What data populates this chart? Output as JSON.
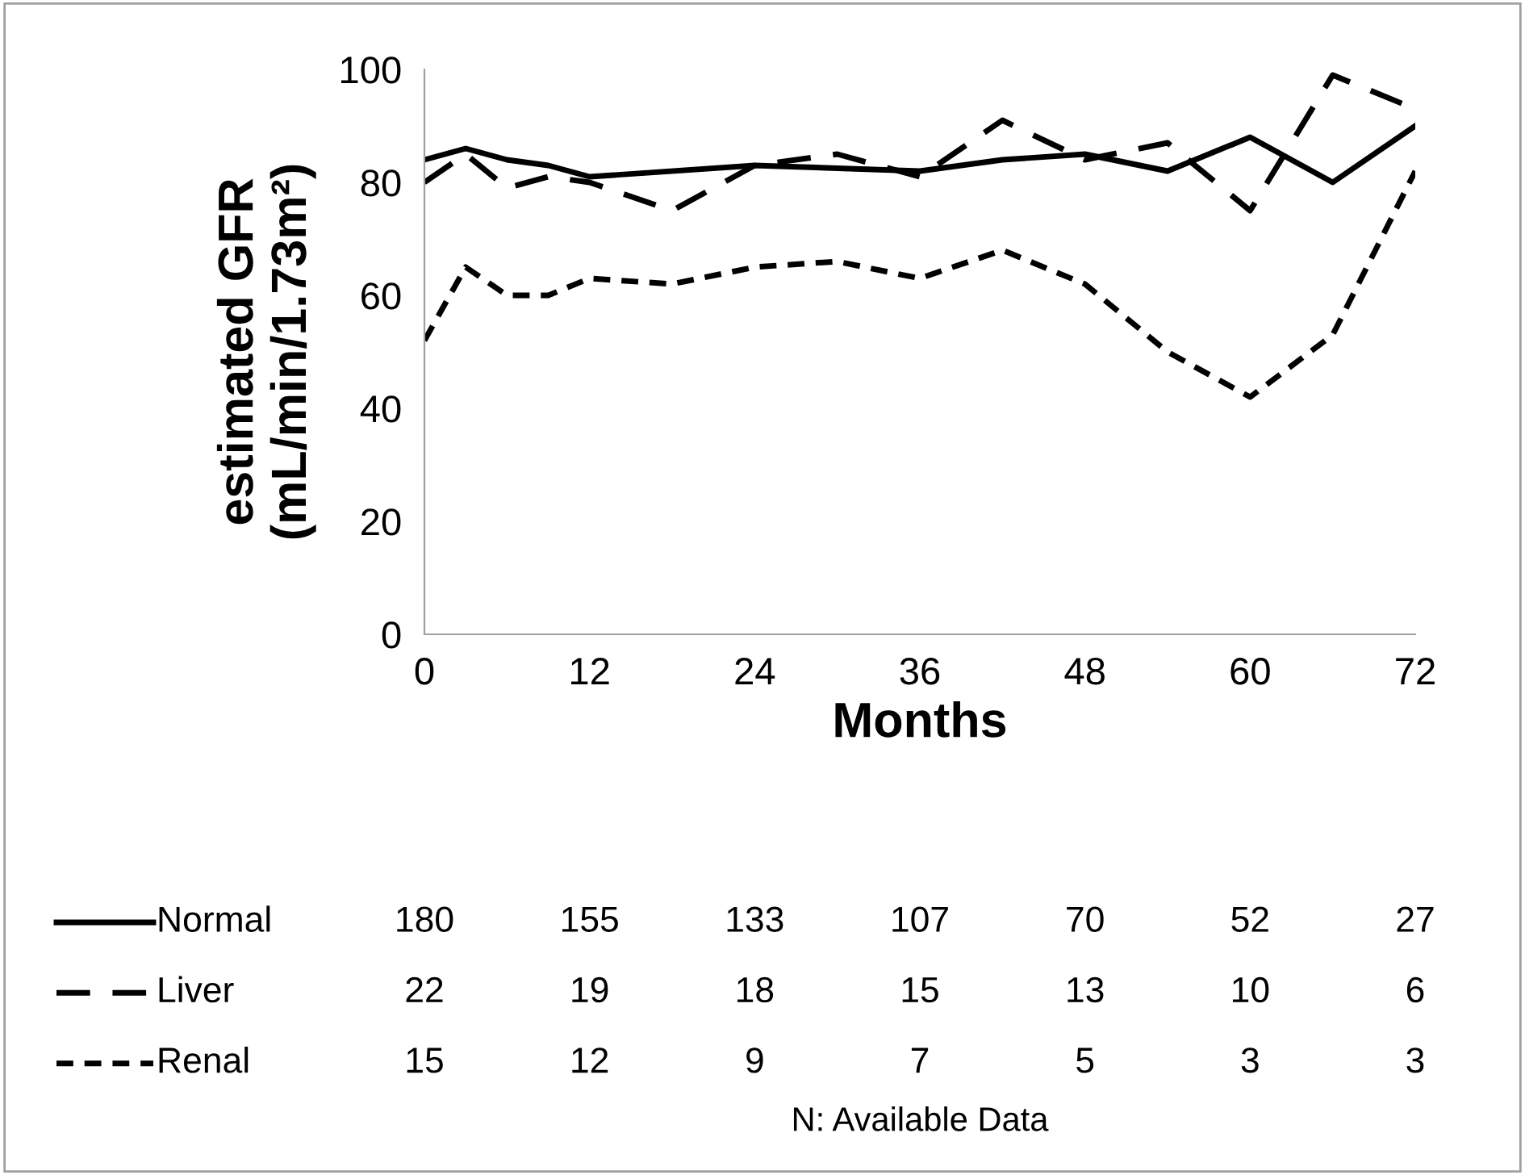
{
  "chart_data": {
    "type": "line",
    "xlabel": "Months",
    "ylabel": "estimated GFR\n(mL/min/1.73m²)",
    "xlim": [
      0,
      72
    ],
    "ylim": [
      0,
      100
    ],
    "xticks": [
      0,
      12,
      24,
      36,
      48,
      60,
      72
    ],
    "yticks": [
      0,
      20,
      40,
      60,
      80,
      100
    ],
    "grid": false,
    "legend": "bottom",
    "marker": "none",
    "series": [
      {
        "name": "Normal",
        "color": "#000000",
        "line_style": "solid",
        "x": [
          0,
          3,
          6,
          9,
          12,
          24,
          36,
          42,
          48,
          54,
          60,
          66,
          72
        ],
        "values": [
          84,
          86,
          84,
          83,
          81,
          83,
          82,
          84,
          85,
          82,
          88,
          80,
          90
        ]
      },
      {
        "name": "Liver",
        "color": "#000000",
        "line_style": "dashed",
        "x": [
          0,
          3,
          6,
          9,
          12,
          18,
          24,
          30,
          36,
          42,
          48,
          54,
          60,
          66,
          72
        ],
        "values": [
          80,
          85,
          79,
          81,
          80,
          75,
          83,
          85,
          81,
          91,
          84,
          87,
          75,
          99,
          93
        ]
      },
      {
        "name": "Renal",
        "color": "#000000",
        "line_style": "dotted",
        "x": [
          0,
          3,
          6,
          9,
          12,
          18,
          24,
          30,
          36,
          42,
          48,
          54,
          60,
          66,
          72
        ],
        "values": [
          52,
          65,
          60,
          60,
          63,
          62,
          65,
          66,
          63,
          68,
          62,
          50,
          42,
          53,
          82
        ]
      }
    ],
    "annotations": [
      "180",
      "155",
      "133",
      "107",
      "70",
      "52",
      "27",
      "22",
      "19",
      "18",
      "15",
      "13",
      "10",
      "6",
      "15",
      "12",
      "9",
      "7",
      "5",
      "3",
      "3",
      "N: Available Data"
    ]
  }
}
